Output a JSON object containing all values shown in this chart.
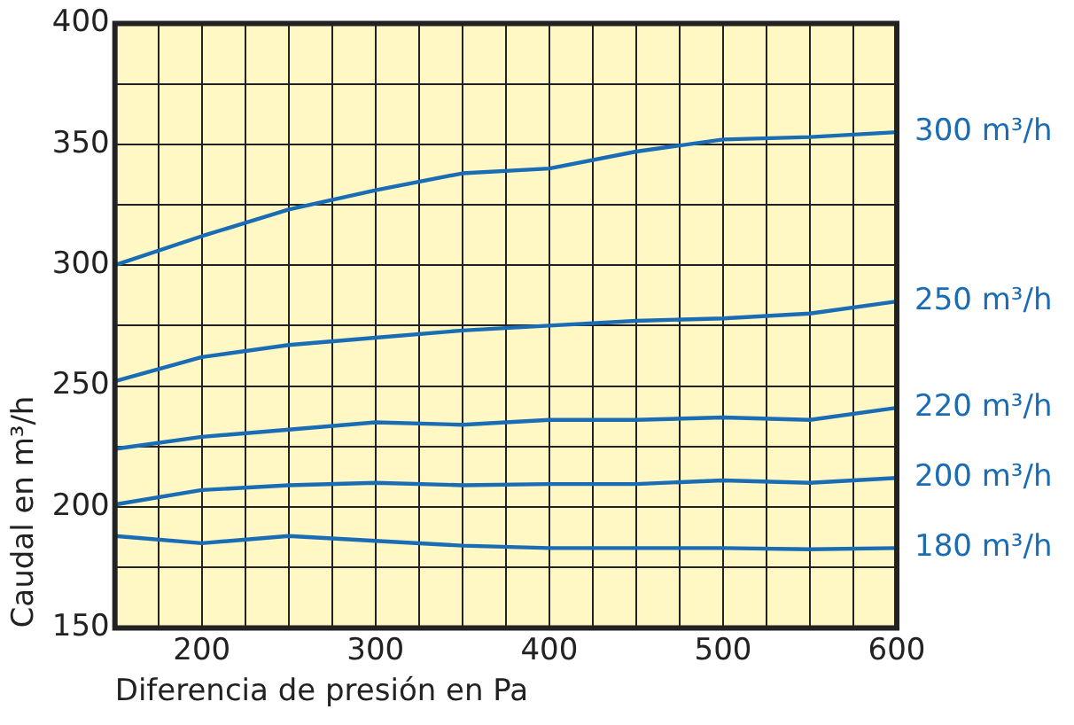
{
  "chart_data": {
    "type": "line",
    "xlabel": "Diferencia de presión en Pa",
    "ylabel": "Caudal en m³/h",
    "x": [
      150,
      200,
      250,
      300,
      350,
      400,
      450,
      500,
      550,
      600
    ],
    "xlim": [
      150,
      600
    ],
    "ylim": [
      150,
      400
    ],
    "xticks": [
      {
        "value": 150,
        "label": null
      },
      200,
      {
        "value": 225,
        "label": null
      },
      {
        "value": 175,
        "label": null
      },
      {
        "value": 250,
        "label": null
      },
      {
        "value": 275,
        "label": null
      },
      300,
      {
        "value": 325,
        "label": null
      },
      {
        "value": 350,
        "label": null
      },
      {
        "value": 375,
        "label": null
      },
      400,
      {
        "value": 425,
        "label": null
      },
      {
        "value": 450,
        "label": null
      },
      {
        "value": 475,
        "label": null
      },
      500,
      {
        "value": 525,
        "label": null
      },
      {
        "value": 550,
        "label": null
      },
      {
        "value": 575,
        "label": null
      },
      600
    ],
    "yticks": [
      150,
      {
        "value": 175,
        "label": null
      },
      200,
      {
        "value": 225,
        "label": null
      },
      250,
      {
        "value": 275,
        "label": null
      },
      300,
      {
        "value": 325,
        "label": null
      },
      350,
      {
        "value": 375,
        "label": null
      },
      400
    ],
    "grid": true,
    "legend": false,
    "marker": "none",
    "line_style": "solid",
    "series": [
      {
        "name": "300 m³/h",
        "color": "#1a6db5",
        "values": [
          300,
          312,
          323,
          331,
          338,
          340,
          347,
          352,
          353,
          355
        ]
      },
      {
        "name": "250 m³/h",
        "color": "#1a6db5",
        "values": [
          252,
          262,
          267,
          270,
          273,
          275,
          277,
          278,
          280,
          285
        ]
      },
      {
        "name": "220 m³/h",
        "color": "#1a6db5",
        "values": [
          224,
          229,
          232,
          235,
          234,
          236,
          236,
          237,
          236,
          241
        ]
      },
      {
        "name": "200 m³/h",
        "color": "#1a6db5",
        "values": [
          201,
          207,
          209,
          210,
          209,
          209.5,
          209.5,
          211,
          210,
          212
        ]
      },
      {
        "name": "180 m³/h",
        "color": "#1a6db5",
        "values": [
          188,
          185,
          188,
          186,
          184,
          183,
          183,
          183,
          182.5,
          183
        ]
      }
    ]
  }
}
